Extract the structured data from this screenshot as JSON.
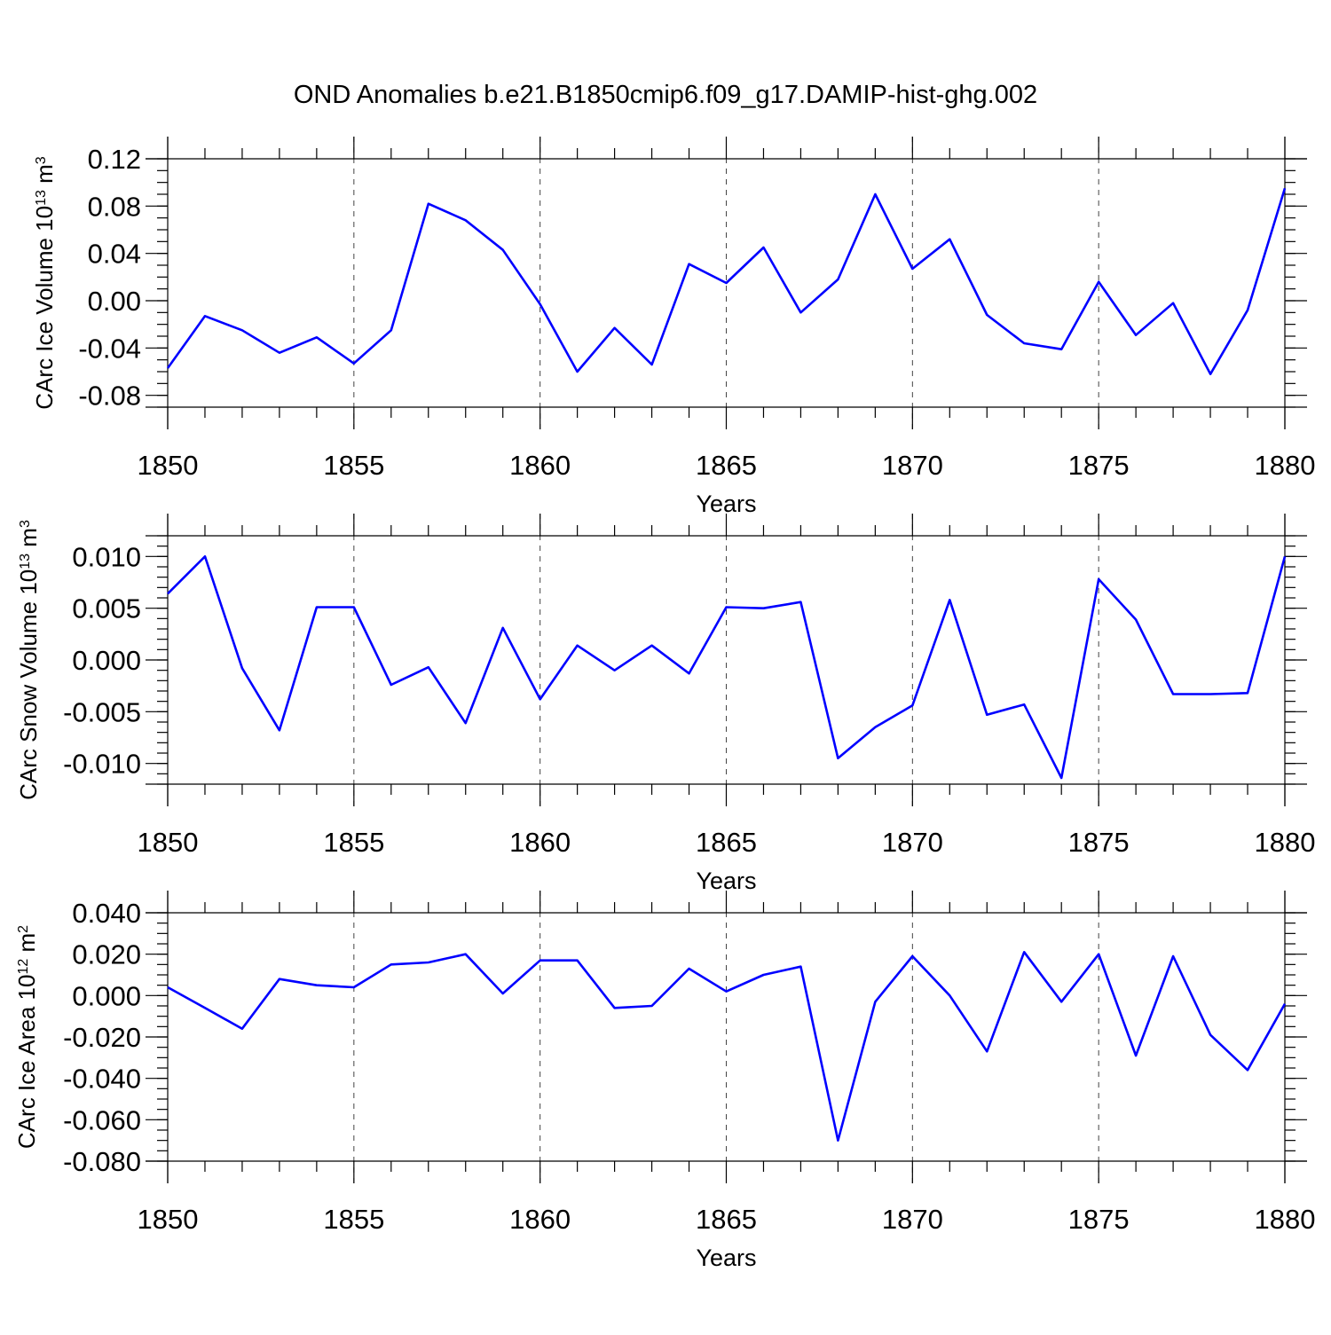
{
  "title": "OND Anomalies b.e21.B1850cmip6.f09_g17.DAMIP-hist-ghg.002",
  "colors": {
    "line": "#0000ff",
    "axis": "#000000"
  },
  "chart_data": [
    {
      "type": "line",
      "xlabel": "Years",
      "ylabel": "CArc Ice Volume 10",
      "ylabel_exp": "13",
      "ylabel_unit": " m",
      "ylabel_unit_exp": "3",
      "xlim": [
        1850,
        1880
      ],
      "ylim": [
        -0.09,
        0.12
      ],
      "x_ticks": [
        1850,
        1855,
        1860,
        1865,
        1870,
        1875,
        1880
      ],
      "y_ticks": [
        -0.08,
        -0.04,
        0.0,
        0.04,
        0.08,
        0.12
      ],
      "y_tick_labels": [
        "-0.08",
        "-0.04",
        "0.00",
        "0.04",
        "0.08",
        "0.12"
      ],
      "y_minor_step": 0.01,
      "grid": "vertical dashed at major x ticks",
      "x": [
        1850,
        1851,
        1852,
        1853,
        1854,
        1855,
        1856,
        1857,
        1858,
        1859,
        1860,
        1861,
        1862,
        1863,
        1864,
        1865,
        1866,
        1867,
        1868,
        1869,
        1870,
        1871,
        1872,
        1873,
        1874,
        1875,
        1876,
        1877,
        1878,
        1879,
        1880
      ],
      "values": [
        -0.057,
        -0.013,
        -0.025,
        -0.044,
        -0.031,
        -0.053,
        -0.025,
        0.082,
        0.068,
        0.043,
        -0.003,
        -0.06,
        -0.023,
        -0.054,
        0.031,
        0.015,
        0.045,
        -0.01,
        0.018,
        0.09,
        0.027,
        0.052,
        -0.012,
        -0.036,
        -0.041,
        0.016,
        -0.029,
        -0.002,
        -0.062,
        -0.008,
        0.095
      ]
    },
    {
      "type": "line",
      "xlabel": "Years",
      "ylabel": "CArc Snow Volume 10",
      "ylabel_exp": "13",
      "ylabel_unit": " m",
      "ylabel_unit_exp": "3",
      "xlim": [
        1850,
        1880
      ],
      "ylim": [
        -0.012,
        0.012
      ],
      "x_ticks": [
        1850,
        1855,
        1860,
        1865,
        1870,
        1875,
        1880
      ],
      "y_ticks": [
        -0.01,
        -0.005,
        0.0,
        0.005,
        0.01
      ],
      "y_tick_labels": [
        "-0.010",
        "-0.005",
        "0.000",
        "0.005",
        "0.010"
      ],
      "y_minor_step": 0.001,
      "grid": "vertical dashed at major x ticks",
      "x": [
        1850,
        1851,
        1852,
        1853,
        1854,
        1855,
        1856,
        1857,
        1858,
        1859,
        1860,
        1861,
        1862,
        1863,
        1864,
        1865,
        1866,
        1867,
        1868,
        1869,
        1870,
        1871,
        1872,
        1873,
        1874,
        1875,
        1876,
        1877,
        1878,
        1879,
        1880
      ],
      "values": [
        0.0064,
        0.01,
        -0.0008,
        -0.0068,
        0.0051,
        0.0051,
        -0.0024,
        -0.0007,
        -0.0061,
        0.0031,
        -0.0038,
        0.0014,
        -0.001,
        0.0014,
        -0.0013,
        0.0051,
        0.005,
        0.0056,
        -0.0095,
        -0.0065,
        -0.0044,
        0.0058,
        -0.0053,
        -0.0043,
        -0.0114,
        0.0078,
        0.0039,
        -0.0033,
        -0.0033,
        -0.0032,
        0.01
      ]
    },
    {
      "type": "line",
      "xlabel": "Years",
      "ylabel": "CArc Ice Area 10",
      "ylabel_exp": "12",
      "ylabel_unit": " m",
      "ylabel_unit_exp": "2",
      "xlim": [
        1850,
        1880
      ],
      "ylim": [
        -0.08,
        0.04
      ],
      "x_ticks": [
        1850,
        1855,
        1860,
        1865,
        1870,
        1875,
        1880
      ],
      "y_ticks": [
        -0.08,
        -0.06,
        -0.04,
        -0.02,
        0.0,
        0.02,
        0.04
      ],
      "y_tick_labels": [
        "-0.080",
        "-0.060",
        "-0.040",
        "-0.020",
        "0.000",
        "0.020",
        "0.040"
      ],
      "y_minor_step": 0.005,
      "grid": "vertical dashed at major x ticks",
      "x": [
        1850,
        1851,
        1852,
        1853,
        1854,
        1855,
        1856,
        1857,
        1858,
        1859,
        1860,
        1861,
        1862,
        1863,
        1864,
        1865,
        1866,
        1867,
        1868,
        1869,
        1870,
        1871,
        1872,
        1873,
        1874,
        1875,
        1876,
        1877,
        1878,
        1879,
        1880
      ],
      "values": [
        0.004,
        -0.006,
        -0.016,
        0.008,
        0.005,
        0.004,
        0.015,
        0.016,
        0.02,
        0.001,
        0.017,
        0.017,
        -0.006,
        -0.005,
        0.013,
        0.002,
        0.01,
        0.014,
        -0.07,
        -0.003,
        0.019,
        0.0,
        -0.027,
        0.021,
        -0.003,
        0.02,
        -0.029,
        0.019,
        -0.019,
        -0.036,
        -0.004
      ]
    }
  ]
}
